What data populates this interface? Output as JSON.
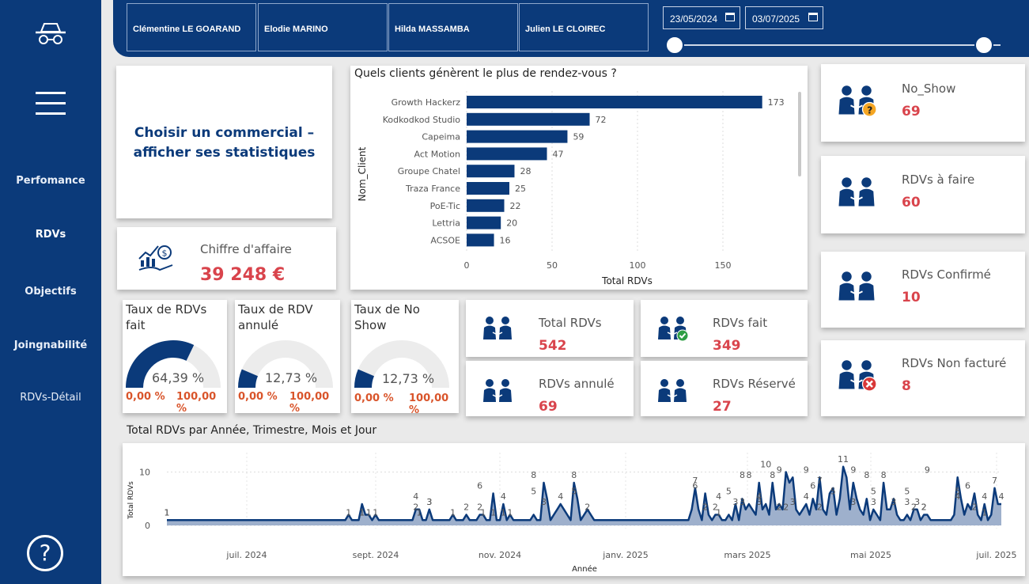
{
  "sidebar": {
    "nav_items": [
      "Perfomance",
      "RDVs",
      "Objectifs",
      "Joingnabilité",
      "RDVs-Détail"
    ],
    "help_glyph": "?"
  },
  "header": {
    "commerciaux": [
      "Clémentine LE GOARAND",
      "Elodie MARINO",
      "Hilda MASSAMBA",
      "Julien LE CLOIREC"
    ],
    "date_start": "23/05/2024",
    "date_end": "03/07/2025"
  },
  "prompt_card": {
    "line1": "Choisir un commercial –",
    "line2": "afficher ses statistiques"
  },
  "revenue": {
    "label": "Chiffre d'affaire",
    "value": "39 248 €"
  },
  "gauges": [
    {
      "title_line1": "Taux de RDVs",
      "title_line2": "fait",
      "value": "64,39 %",
      "pct": 64.39,
      "min": "0,00 %",
      "max": "100,00 %"
    },
    {
      "title_line1": "Taux de RDV",
      "title_line2": "annulé",
      "value": "12,73 %",
      "pct": 12.73,
      "min": "0,00 %",
      "max": "100,00 %"
    },
    {
      "title_line1": "Taux de No",
      "title_line2": "Show",
      "value": "12,73 %",
      "pct": 12.73,
      "min": "0,00 %",
      "max": "100,00 %"
    }
  ],
  "kpis_center": [
    {
      "label": "Total RDVs",
      "value": "542"
    },
    {
      "label": "RDVs fait",
      "value": "349"
    },
    {
      "label": "RDVs annulé",
      "value": "69"
    },
    {
      "label": "RDVs Réservé",
      "value": "27"
    }
  ],
  "kpis_right": [
    {
      "label": "No_Show",
      "value": "69"
    },
    {
      "label": "RDVs à faire",
      "value": "60"
    },
    {
      "label": "RDVs Confirmé",
      "value": "10"
    },
    {
      "label": "RDVs Non facturé",
      "value": "8"
    }
  ],
  "colors": {
    "navy": "#0b3a7a",
    "value_red": "#d9444c",
    "gauge_bg": "#ececec",
    "area_fill": "#9eb0cc",
    "warn": "#f5a623",
    "ok": "#2e9e44",
    "bad": "#d93838"
  },
  "chart_data": [
    {
      "type": "bar",
      "orientation": "horizontal",
      "title": "Quels clients génèrent le plus de rendez-vous ?",
      "xlabel": "Total RDVs",
      "ylabel": "Nom_Client",
      "categories": [
        "Growth Hackerz",
        "Kodkodkod Studio",
        "Capeima",
        "Act Motion",
        "Groupe Chatel",
        "Traza France",
        "PoE-Tic",
        "Lettria",
        "ACSOE"
      ],
      "values": [
        173,
        72,
        59,
        47,
        28,
        25,
        22,
        20,
        16
      ],
      "xlim": [
        0,
        175
      ],
      "xticks": [
        0,
        50,
        100,
        150
      ]
    },
    {
      "type": "area",
      "title": "Total RDVs par Année, Trimestre, Mois et Jour",
      "xlabel": "Année",
      "ylabel": "Total RDVs",
      "ylim": [
        0,
        12
      ],
      "yticks": [
        0,
        10
      ],
      "xtick_labels": [
        "juil. 2024",
        "sept. 2024",
        "nov. 2024",
        "janv. 2025",
        "mars 2025",
        "mai 2025",
        "juil. 2025"
      ],
      "values": [
        1,
        1,
        1,
        1,
        1,
        1,
        1,
        1,
        1,
        1,
        1,
        1,
        1,
        1,
        1,
        1,
        1,
        1,
        1,
        1,
        1,
        1,
        1,
        1,
        1,
        1,
        1,
        1,
        1,
        1,
        1,
        1,
        1,
        1,
        1,
        1,
        1,
        1,
        1,
        1,
        1,
        1,
        1,
        1,
        1,
        1,
        1,
        1,
        1,
        1,
        1,
        1,
        1,
        1,
        2,
        1,
        1,
        1,
        4,
        2,
        2,
        1,
        2,
        1,
        1,
        1,
        1,
        1,
        1,
        1,
        1,
        1,
        1,
        1,
        3,
        3,
        1,
        1,
        3,
        1,
        1,
        1,
        1,
        1,
        1,
        2,
        1,
        1,
        1,
        2,
        1,
        1,
        1,
        2,
        2,
        1,
        1,
        6,
        1,
        1,
        4,
        1,
        2,
        1,
        1,
        1,
        1,
        1,
        1,
        2,
        1,
        1,
        8,
        5,
        1,
        2,
        3,
        4,
        3,
        2,
        1,
        8,
        5,
        1,
        2,
        3,
        2,
        1,
        1,
        1,
        1,
        1,
        1,
        1,
        1,
        1,
        1,
        1,
        1,
        1,
        1,
        1,
        1,
        1,
        1,
        1,
        1,
        1,
        1,
        1,
        1,
        1,
        1,
        1,
        1,
        1,
        3,
        7,
        3,
        1,
        6,
        2,
        1,
        2,
        2,
        1,
        1,
        2,
        1,
        4,
        1,
        5,
        3,
        4,
        3,
        2,
        8,
        3,
        4,
        2,
        8,
        3,
        4,
        3,
        10,
        8,
        9,
        3,
        2,
        3,
        4,
        2,
        5,
        3,
        9,
        3,
        2,
        6,
        7,
        2,
        5,
        11,
        9,
        3,
        8,
        5,
        3,
        2,
        5,
        1,
        3,
        2,
        1,
        8,
        3,
        3,
        5,
        2,
        1,
        1,
        2,
        1,
        3,
        3,
        1,
        2,
        2,
        1,
        1,
        1,
        1,
        1,
        1,
        1,
        2,
        9,
        5,
        2,
        4,
        3,
        6,
        2,
        1,
        4,
        1,
        2,
        7,
        4,
        4
      ],
      "peak_labels": [
        1,
        1,
        1,
        1,
        1,
        1,
        1,
        4,
        2,
        1,
        3,
        3,
        1,
        2,
        2,
        6,
        1,
        1,
        4,
        1,
        1,
        8,
        5,
        3,
        4,
        8,
        5,
        2,
        7,
        6,
        2,
        2,
        1,
        4,
        5,
        3,
        8,
        3,
        8,
        4,
        3,
        10,
        8,
        9,
        2,
        2,
        3,
        9,
        4,
        6,
        7,
        2,
        5,
        11,
        9,
        3,
        8,
        5,
        3,
        8,
        3,
        3,
        5,
        2,
        3,
        2,
        2,
        9,
        5,
        4,
        6,
        2,
        1,
        4,
        7,
        4
      ]
    }
  ]
}
